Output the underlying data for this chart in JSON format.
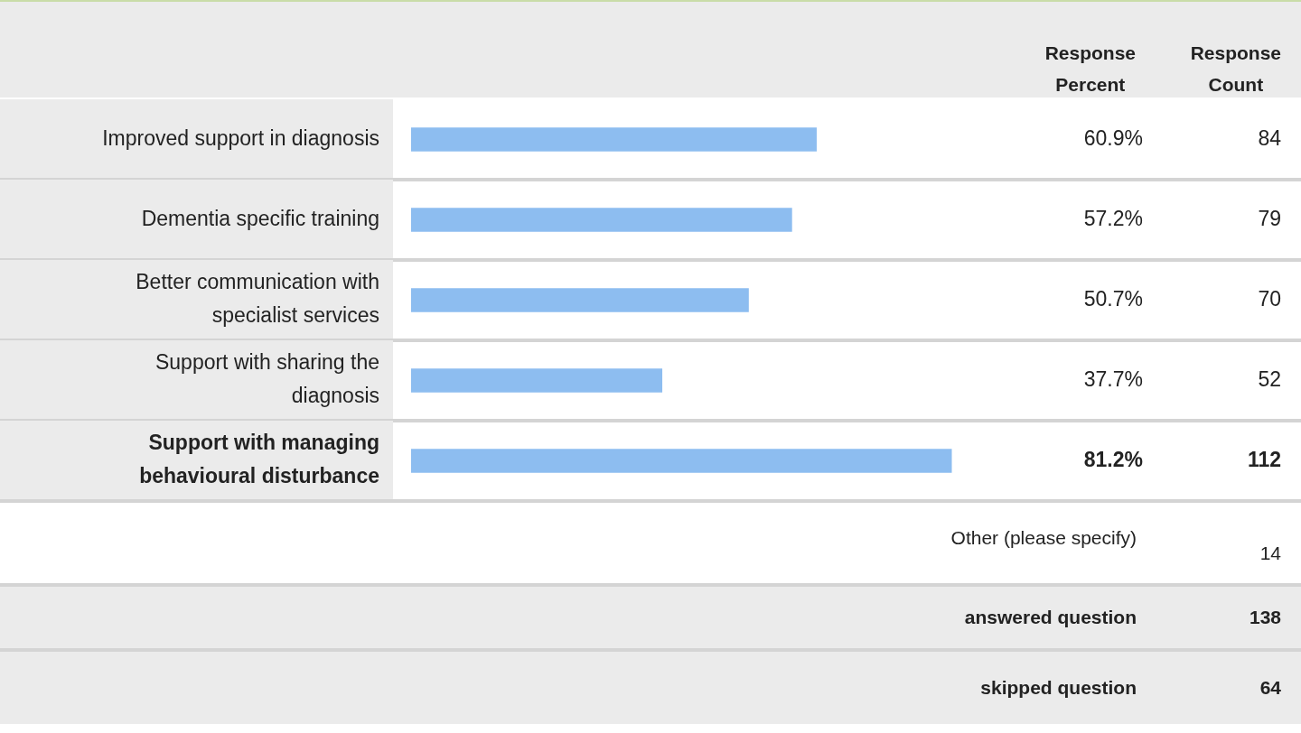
{
  "chart_data": {
    "type": "bar",
    "orientation": "horizontal",
    "categories": [
      "Improved support in diagnosis",
      "Dementia specific training",
      "Better communication with specialist services",
      "Support with sharing the diagnosis",
      "Support with managing behavioural disturbance"
    ],
    "values": [
      60.9,
      57.2,
      50.7,
      37.7,
      81.2
    ],
    "value_labels": [
      "60.9%",
      "57.2%",
      "50.7%",
      "37.7%",
      "81.2%"
    ],
    "color": "#8dbdf0",
    "legend": false,
    "annotations": [
      "Response Percent",
      "Response Count",
      "Other (please specify)",
      "14",
      "answered question",
      "138",
      "skipped question",
      "64",
      "84",
      "79",
      "70",
      "52",
      "112"
    ]
  }
}
